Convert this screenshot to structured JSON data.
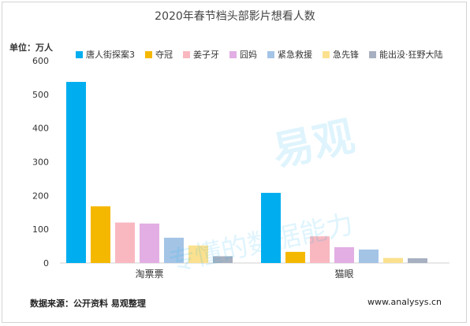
{
  "chart_data": {
    "type": "bar",
    "title": "2020年春节档头部影片想看人数",
    "unit_label": "单位：万人",
    "categories": [
      "淘票票",
      "猫眼"
    ],
    "series": [
      {
        "name": "唐人街探案3",
        "color": "#00aeef",
        "values": [
          537,
          208
        ]
      },
      {
        "name": "夺冠",
        "color": "#f5b800",
        "values": [
          168,
          33
        ]
      },
      {
        "name": "姜子牙",
        "color": "#f9b8c0",
        "values": [
          120,
          79
        ]
      },
      {
        "name": "囧妈",
        "color": "#e2aee4",
        "values": [
          117,
          47
        ]
      },
      {
        "name": "紧急救援",
        "color": "#a4c4e6",
        "values": [
          75,
          40
        ]
      },
      {
        "name": "急先锋",
        "color": "#fbe18f",
        "values": [
          52,
          15
        ]
      },
      {
        "name": "能出没·狂野大陆",
        "color": "#a7b0c0",
        "values": [
          20,
          14
        ]
      }
    ],
    "yticks": [
      0,
      100,
      200,
      300,
      400,
      500,
      600
    ],
    "ylim": [
      0,
      600
    ],
    "grid": false,
    "legend": "top"
  },
  "footer": {
    "source": "数据来源：公开资料 易观整理",
    "site": "www.analysys.cn"
  },
  "watermark": {
    "brand": "易观",
    "slogan": "专懂的数据能力"
  }
}
